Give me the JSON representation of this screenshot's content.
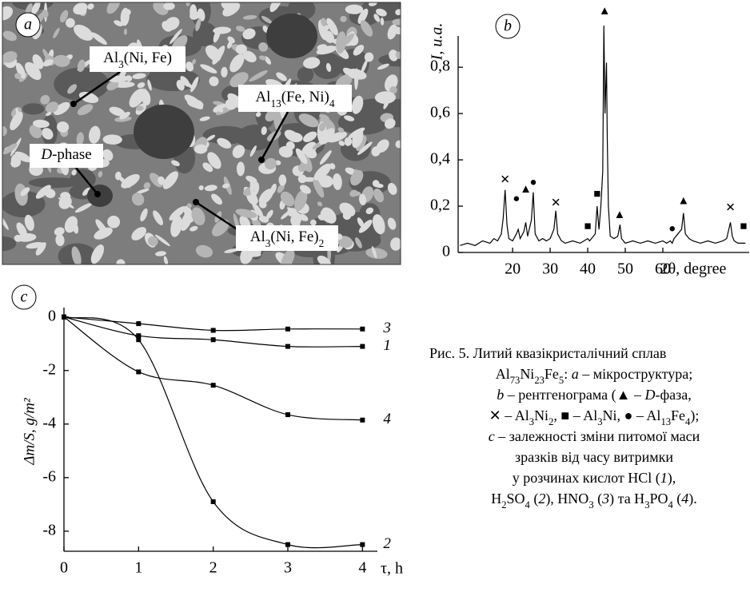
{
  "panel_a": {
    "label": "a",
    "annotations": [
      [
        {
          "text": "Al"
        },
        {
          "text": "3",
          "style": "sub"
        },
        {
          "text": "(Ni, Fe)"
        }
      ],
      [
        {
          "text": "Al"
        },
        {
          "text": "13",
          "style": "sub"
        },
        {
          "text": "(Fe, Ni)"
        },
        {
          "text": "4",
          "style": "sub"
        }
      ],
      [
        {
          "text": "D",
          "style": "i"
        },
        {
          "text": "-phase"
        }
      ],
      [
        {
          "text": "Al"
        },
        {
          "text": "3",
          "style": "sub"
        },
        {
          "text": "(Ni, Fe)"
        },
        {
          "text": "2",
          "style": "sub"
        }
      ]
    ]
  },
  "chart_data": [
    {
      "type": "line",
      "panel_label": "b",
      "ylabel": "I, u.a.",
      "xlabel": "2θ, degree",
      "xlim": [
        5.5,
        83
      ],
      "ylim": [
        0,
        1.08
      ],
      "xticks": [
        20,
        30,
        40,
        50,
        60
      ],
      "yticks": [
        0,
        {
          "value": 0.2,
          "label": "0,2"
        },
        {
          "value": 0.4,
          "label": "0,4"
        },
        {
          "value": 0.6,
          "label": "0,6"
        },
        {
          "value": 0.8,
          "label": "0,8"
        }
      ],
      "series": [
        {
          "color": "#000000",
          "x": [
            6,
            8,
            10,
            12,
            14,
            15,
            16,
            17,
            17.5,
            18,
            18.5,
            19,
            20,
            21,
            21.5,
            22,
            23,
            23.5,
            24,
            25,
            25.5,
            26,
            27,
            28,
            29,
            30,
            31,
            31.5,
            32,
            33,
            34,
            36,
            38,
            39,
            40,
            40.5,
            41,
            42,
            42.5,
            43,
            43.5,
            44,
            44.3,
            44.6,
            45,
            45.2,
            45.5,
            46,
            47,
            48,
            48.6,
            49,
            50,
            52,
            54,
            56,
            58,
            60,
            61,
            62,
            62.5,
            63,
            64,
            65,
            65.5,
            66,
            67,
            68,
            70,
            72,
            74,
            76,
            77,
            78,
            78.5,
            79,
            80,
            82
          ],
          "values": [
            0.03,
            0.04,
            0.03,
            0.05,
            0.04,
            0.06,
            0.05,
            0.08,
            0.15,
            0.27,
            0.12,
            0.06,
            0.05,
            0.08,
            0.1,
            0.06,
            0.09,
            0.13,
            0.07,
            0.14,
            0.26,
            0.08,
            0.05,
            0.06,
            0.05,
            0.06,
            0.1,
            0.18,
            0.08,
            0.05,
            0.04,
            0.05,
            0.04,
            0.05,
            0.06,
            0.05,
            0.06,
            0.08,
            0.2,
            0.1,
            0.2,
            0.35,
            0.98,
            0.6,
            0.82,
            0.5,
            0.2,
            0.07,
            0.06,
            0.07,
            0.12,
            0.06,
            0.04,
            0.05,
            0.04,
            0.05,
            0.04,
            0.05,
            0.04,
            0.05,
            0.04,
            0.06,
            0.08,
            0.1,
            0.17,
            0.08,
            0.06,
            0.05,
            0.04,
            0.05,
            0.04,
            0.05,
            0.06,
            0.13,
            0.07,
            0.05,
            0.04,
            0.04
          ]
        }
      ],
      "peak_markers": [
        {
          "symbol": "✕",
          "x": 18,
          "y": 0.31
        },
        {
          "symbol": "●",
          "x": 21,
          "y": 0.23
        },
        {
          "symbol": "▲",
          "x": 23.5,
          "y": 0.27
        },
        {
          "symbol": "●",
          "x": 25.5,
          "y": 0.3
        },
        {
          "symbol": "✕",
          "x": 31.5,
          "y": 0.21
        },
        {
          "symbol": "■",
          "x": 40,
          "y": 0.11
        },
        {
          "symbol": "■",
          "x": 42.5,
          "y": 0.25
        },
        {
          "symbol": "▲",
          "x": 44.5,
          "y": 1.04
        },
        {
          "symbol": "▲",
          "x": 48.5,
          "y": 0.16
        },
        {
          "symbol": "●",
          "x": 62.5,
          "y": 0.1
        },
        {
          "symbol": "▲",
          "x": 65.5,
          "y": 0.22
        },
        {
          "symbol": "✕",
          "x": 78,
          "y": 0.19
        },
        {
          "symbol": "■",
          "x": 81.5,
          "y": 0.11
        }
      ]
    },
    {
      "type": "line",
      "panel_label": "c",
      "ylabel": "Δm/S, g/m²",
      "xlabel": "τ, h",
      "xlim": [
        0,
        4.2
      ],
      "ylim": [
        -8.75,
        0.35
      ],
      "xticks": [
        0,
        1,
        2,
        3,
        4
      ],
      "yticks": [
        0,
        -2,
        -4,
        -6,
        -8
      ],
      "x": [
        0,
        1,
        2,
        3,
        4
      ],
      "series": [
        {
          "name": "3",
          "color": "#000000",
          "values": [
            0,
            -0.25,
            -0.5,
            -0.45,
            -0.45
          ]
        },
        {
          "name": "1",
          "color": "#000000",
          "values": [
            0,
            -0.7,
            -0.85,
            -1.1,
            -1.1
          ]
        },
        {
          "name": "4",
          "color": "#000000",
          "values": [
            0,
            -2.05,
            -2.55,
            -3.65,
            -3.85
          ]
        },
        {
          "name": "2",
          "color": "#000000",
          "values": [
            0,
            -0.85,
            -6.9,
            -8.5,
            -8.5
          ]
        }
      ]
    }
  ],
  "caption": [
    [
      {
        "text": "Рис. 5. Литий квазікристалічний сплав"
      }
    ],
    [
      {
        "text": "Al"
      },
      {
        "text": "73",
        "style": "sub"
      },
      {
        "text": "Ni"
      },
      {
        "text": "23",
        "style": "sub"
      },
      {
        "text": "Fe"
      },
      {
        "text": "5",
        "style": "sub"
      },
      {
        "text": ": "
      },
      {
        "text": "a",
        "style": "i"
      },
      {
        "text": " – мікроструктура;"
      }
    ],
    [
      {
        "text": "b",
        "style": "i"
      },
      {
        "text": " – рентгенограма (▲ – "
      },
      {
        "text": "D",
        "style": "i"
      },
      {
        "text": "-фаза,"
      }
    ],
    [
      {
        "text": "✕ – Al"
      },
      {
        "text": "3",
        "style": "sub"
      },
      {
        "text": "Ni"
      },
      {
        "text": "2",
        "style": "sub"
      },
      {
        "text": ", ■ – Al"
      },
      {
        "text": "3",
        "style": "sub"
      },
      {
        "text": "Ni, ● – Al"
      },
      {
        "text": "13",
        "style": "sub"
      },
      {
        "text": "Fe"
      },
      {
        "text": "4",
        "style": "sub"
      },
      {
        "text": ");"
      }
    ],
    [
      {
        "text": "c",
        "style": "i"
      },
      {
        "text": " – залежності зміни питомої маси"
      }
    ],
    [
      {
        "text": "зразків від часу витримки"
      }
    ],
    [
      {
        "text": "у розчинах кислот HCl ("
      },
      {
        "text": "1",
        "style": "i"
      },
      {
        "text": "),"
      }
    ],
    [
      {
        "text": "H"
      },
      {
        "text": "2",
        "style": "sub"
      },
      {
        "text": "SO"
      },
      {
        "text": "4",
        "style": "sub"
      },
      {
        "text": " ("
      },
      {
        "text": "2",
        "style": "i"
      },
      {
        "text": "), HNO"
      },
      {
        "text": "3",
        "style": "sub"
      },
      {
        "text": " ("
      },
      {
        "text": "3",
        "style": "i"
      },
      {
        "text": ") та H"
      },
      {
        "text": "3",
        "style": "sub"
      },
      {
        "text": "PO"
      },
      {
        "text": "4",
        "style": "sub"
      },
      {
        "text": " ("
      },
      {
        "text": "4",
        "style": "i"
      },
      {
        "text": ")."
      }
    ]
  ]
}
